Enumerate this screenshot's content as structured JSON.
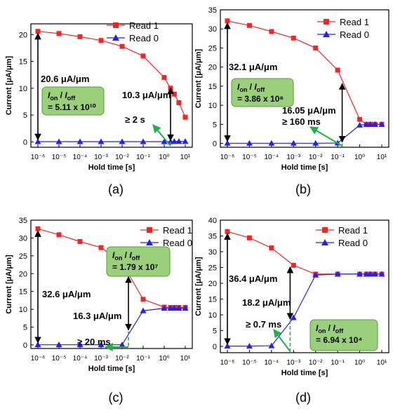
{
  "shared": {
    "ylabel": "Current [μA/μm]",
    "xlabel": "Hold time [s]",
    "x_tick_labels": [
      "10⁻⁶",
      "10⁻⁵",
      "10⁻⁴",
      "10⁻³",
      "10⁻²",
      "10⁻¹",
      "10⁰",
      "10¹"
    ],
    "legend": [
      {
        "name": "Read 1",
        "color": "#ff2020",
        "marker": "square"
      },
      {
        "name": "Read 0",
        "color": "#1f1fff",
        "marker": "triangle"
      }
    ],
    "colors": {
      "box_fill": "#9bd07a",
      "box_stroke": "#5a9a3a",
      "green_arrow": "#22b04a",
      "green_dash": "#22b04a"
    }
  },
  "chart_data": [
    {
      "type": "line",
      "panel_label": "(a)",
      "xscale": "log",
      "xlim": [
        1e-06,
        10
      ],
      "ylim": [
        -1,
        22
      ],
      "yticks": [
        0,
        5,
        10,
        15,
        20
      ],
      "series": [
        {
          "name": "Read 1",
          "x": [
            1e-06,
            1e-05,
            0.0001,
            0.001,
            0.01,
            0.1,
            1,
            2,
            3,
            5,
            10
          ],
          "y": [
            20.6,
            20.2,
            19.6,
            18.9,
            17.8,
            16.0,
            12.0,
            10.0,
            8.9,
            7.3,
            4.6
          ]
        },
        {
          "name": "Read 0",
          "x": [
            1e-06,
            1e-05,
            0.0001,
            0.001,
            0.01,
            0.1,
            1,
            2,
            3,
            5,
            10
          ],
          "y": [
            0.05,
            0.05,
            0.05,
            0.05,
            0.05,
            0.05,
            0.05,
            0.05,
            0.1,
            0.1,
            0.1
          ]
        }
      ],
      "annotations": {
        "full_window": "20.6 μA/μm",
        "half_window": "10.3 μA/μm",
        "retention": "≥ 2 s",
        "ratio_prefix": "I",
        "ratio_on": "on",
        "ratio_off": "off",
        "ratio_value": "= 5.11 x 10¹⁰"
      },
      "markers": {
        "full_window_y": 20.6,
        "half_window_y": [
          0,
          10.3
        ],
        "retention_x": 2
      }
    },
    {
      "type": "line",
      "panel_label": "(b)",
      "xscale": "log",
      "xlim": [
        1e-06,
        10
      ],
      "ylim": [
        -1,
        35
      ],
      "yticks": [
        0,
        5,
        10,
        15,
        20,
        25,
        30,
        35
      ],
      "series": [
        {
          "name": "Read 1",
          "x": [
            1e-06,
            1e-05,
            0.0001,
            0.001,
            0.01,
            0.1,
            1,
            2,
            3,
            5,
            10
          ],
          "y": [
            32.1,
            30.9,
            29.3,
            27.6,
            25.0,
            19.2,
            6.3,
            5.0,
            5.0,
            5.0,
            5.0
          ]
        },
        {
          "name": "Read 0",
          "x": [
            1e-06,
            1e-05,
            0.0001,
            0.001,
            0.01,
            0.1,
            1,
            2,
            3,
            5,
            10
          ],
          "y": [
            0.05,
            0.05,
            0.05,
            0.05,
            0.05,
            0.1,
            4.8,
            5.0,
            5.0,
            5.0,
            5.0
          ]
        }
      ],
      "annotations": {
        "full_window": "32.1 μA/μm",
        "half_window": "16.05 μA/μm",
        "retention": "≥ 160 ms",
        "ratio_prefix": "I",
        "ratio_on": "on",
        "ratio_off": "off",
        "ratio_value": "= 3.86 x 10⁸"
      },
      "markers": {
        "full_window_y": 32.1,
        "half_window_y": [
          0,
          16.05
        ],
        "retention_x": 0.16
      }
    },
    {
      "type": "line",
      "panel_label": "(c)",
      "xscale": "log",
      "xlim": [
        1e-06,
        10
      ],
      "ylim": [
        -1,
        35
      ],
      "yticks": [
        0,
        5,
        10,
        15,
        20,
        25,
        30,
        35
      ],
      "series": [
        {
          "name": "Read 1",
          "x": [
            1e-06,
            1e-05,
            0.0001,
            0.001,
            0.01,
            0.1,
            1,
            2,
            3,
            5,
            10
          ],
          "y": [
            32.6,
            30.9,
            29.0,
            27.3,
            23.0,
            12.8,
            10.6,
            10.5,
            10.5,
            10.5,
            10.5
          ]
        },
        {
          "name": "Read 0",
          "x": [
            1e-06,
            1e-05,
            0.0001,
            0.001,
            0.01,
            0.1,
            1,
            2,
            3,
            5,
            10
          ],
          "y": [
            0.05,
            0.05,
            0.05,
            0.05,
            0.05,
            9.6,
            10.3,
            10.3,
            10.3,
            10.3,
            10.3
          ]
        }
      ],
      "annotations": {
        "full_window": "32.6 μA/μm",
        "half_window": "16.3 μA/μm",
        "retention": "≥ 20 ms",
        "ratio_prefix": "I",
        "ratio_on": "on",
        "ratio_off": "off",
        "ratio_value": "= 1.79 x 10⁷"
      },
      "markers": {
        "full_window_y": 32.6,
        "half_window_y": [
          3.8,
          19.5
        ],
        "retention_x": 0.02
      }
    },
    {
      "type": "line",
      "panel_label": "(d)",
      "xscale": "log",
      "xlim": [
        1e-06,
        10
      ],
      "ylim": [
        -2,
        40
      ],
      "yticks": [
        0,
        5,
        10,
        15,
        20,
        25,
        30,
        35,
        40
      ],
      "series": [
        {
          "name": "Read 1",
          "x": [
            1e-06,
            1e-05,
            0.0001,
            0.001,
            0.01,
            0.1,
            1,
            2,
            3,
            5,
            10
          ],
          "y": [
            36.4,
            34.4,
            31.2,
            25.7,
            22.9,
            22.9,
            22.9,
            22.9,
            22.9,
            22.9,
            22.9
          ]
        },
        {
          "name": "Read 0",
          "x": [
            1e-06,
            1e-05,
            0.0001,
            0.001,
            0.01,
            0.1,
            1,
            2,
            3,
            5,
            10
          ],
          "y": [
            0.1,
            0.1,
            0.2,
            9.1,
            22.6,
            22.9,
            22.9,
            22.9,
            22.9,
            22.9,
            22.9
          ]
        }
      ],
      "annotations": {
        "full_window": "36.4 μA/μm",
        "half_window": "18.2 μA/μm",
        "retention": "≥ 0.7 ms",
        "ratio_prefix": "I",
        "ratio_on": "on",
        "ratio_off": "off",
        "ratio_value": "= 6.94 x 10⁴"
      },
      "markers": {
        "full_window_y": 36.4,
        "half_window_y": [
          8.2,
          25.6
        ],
        "retention_x": 0.0007
      }
    }
  ]
}
